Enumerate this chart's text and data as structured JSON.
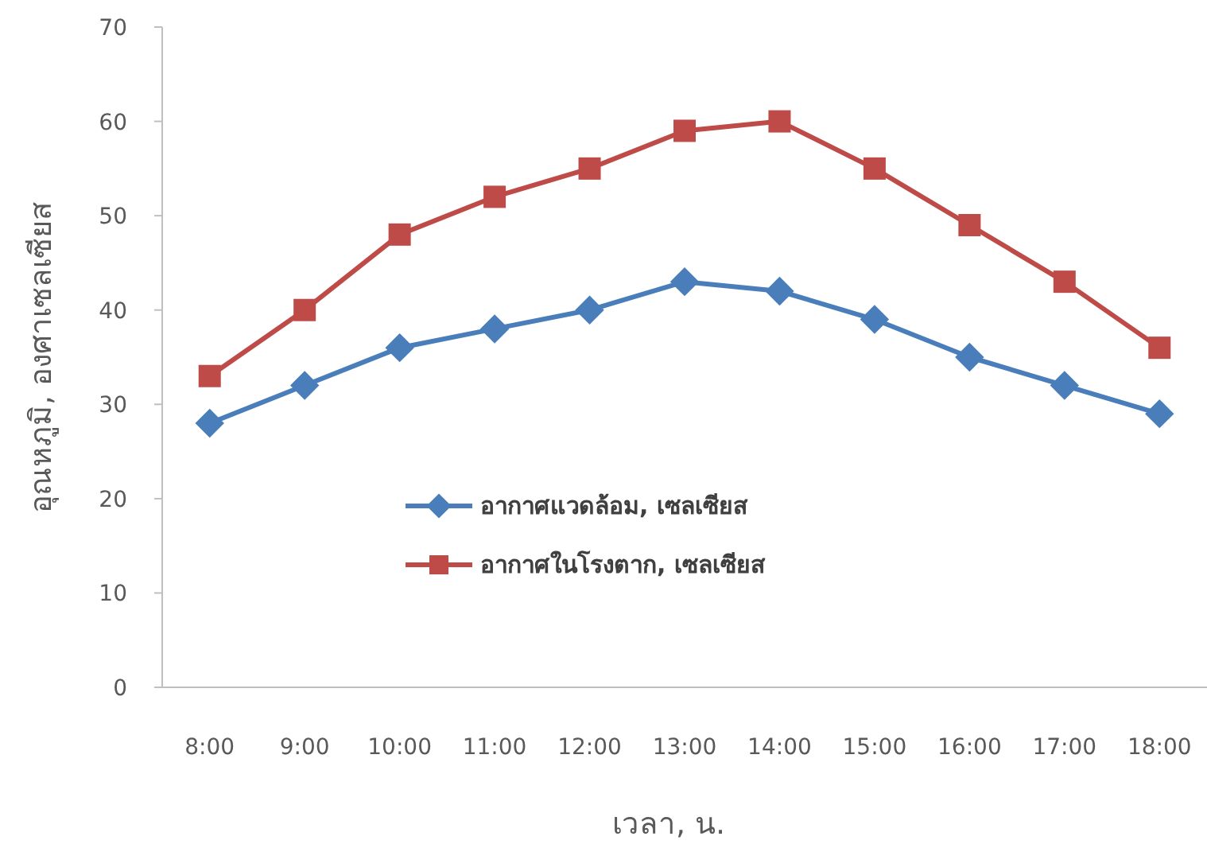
{
  "chart_data": {
    "type": "line",
    "xlabel": "เวลา, น.",
    "ylabel": "อุณหภูมิ, องศาเซลเซียส",
    "categories": [
      "8:00",
      "9:00",
      "10:00",
      "11:00",
      "12:00",
      "13:00",
      "14:00",
      "15:00",
      "16:00",
      "17:00",
      "18:00"
    ],
    "series": [
      {
        "name": "อากาศแวดล้อม, เซลเซียส",
        "color": "#4a7ebb",
        "marker": "diamond",
        "values": [
          28,
          32,
          36,
          38,
          40,
          43,
          42,
          39,
          35,
          32,
          29
        ]
      },
      {
        "name": "อากาศในโรงตาก, เซลเซียส",
        "color": "#be4b48",
        "marker": "square",
        "values": [
          33,
          40,
          48,
          52,
          55,
          59,
          60,
          55,
          49,
          43,
          36
        ]
      }
    ],
    "ylim": [
      0,
      70
    ],
    "yticks": [
      0,
      10,
      20,
      30,
      40,
      50,
      60,
      70
    ],
    "grid": false,
    "legend": "bottom"
  }
}
